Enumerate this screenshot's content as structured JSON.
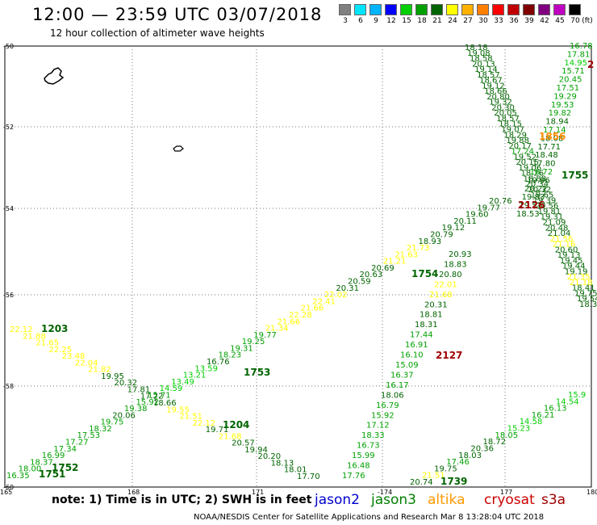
{
  "header": {
    "title": "12:00 — 23:59 UTC 03/07/2018",
    "subtitle": "12 hour collection of altimeter wave heights"
  },
  "legend": {
    "unit": "(ft)",
    "entries": [
      {
        "label": "3",
        "color": "#808080"
      },
      {
        "label": "6",
        "color": "#00e5ff"
      },
      {
        "label": "9",
        "color": "#00b4ff"
      },
      {
        "label": "12",
        "color": "#0000ff"
      },
      {
        "label": "15",
        "color": "#00d000"
      },
      {
        "label": "18",
        "color": "#00a000"
      },
      {
        "label": "21",
        "color": "#006400"
      },
      {
        "label": "24",
        "color": "#ffff00"
      },
      {
        "label": "27",
        "color": "#ffb000"
      },
      {
        "label": "30",
        "color": "#ff7f00"
      },
      {
        "label": "33",
        "color": "#ff0000"
      },
      {
        "label": "36",
        "color": "#c00000"
      },
      {
        "label": "39",
        "color": "#800000"
      },
      {
        "label": "42",
        "color": "#800080"
      },
      {
        "label": "45",
        "color": "#c000c0"
      },
      {
        "label": "70",
        "color": "#000000"
      }
    ]
  },
  "axes": {
    "lat_labels": [
      "-50",
      "-52",
      "-54",
      "-56",
      "-58",
      "-60"
    ],
    "lon_labels": [
      "165",
      "168",
      "171",
      "-174",
      "177",
      "180"
    ]
  },
  "note": "note: 1) Time is in UTC; 2) SWH is in feet",
  "satellites": [
    {
      "name": "jason2",
      "color": "#0000d0"
    },
    {
      "name": "jason3",
      "color": "#008000"
    },
    {
      "name": "altika",
      "color": "#ff9900"
    },
    {
      "name": "cryosat",
      "color": "#cc0000"
    },
    {
      "name": "s3a",
      "color": "#a00000"
    }
  ],
  "footer": "NOAA/NESDIS Center for Satellite Applications and Research   Mar  8 13:28:04 UTC 2018",
  "track_times": [
    {
      "text": "1203",
      "color": "#006400"
    },
    {
      "text": "1204",
      "color": "#006400"
    },
    {
      "text": "1751",
      "color": "#006400"
    },
    {
      "text": "1752",
      "color": "#006400"
    },
    {
      "text": "1753",
      "color": "#006400"
    },
    {
      "text": "1754",
      "color": "#006400"
    },
    {
      "text": "1755",
      "color": "#006400"
    },
    {
      "text": "1739",
      "color": "#006400"
    },
    {
      "text": "2127",
      "color": "#a00000"
    },
    {
      "text": "2126",
      "color": "#a00000"
    },
    {
      "text": "1856",
      "color": "#ff8c00"
    },
    {
      "text": "2",
      "color": "#a00000"
    }
  ],
  "track_a": {
    "note": "SW-NE jason3 track from lower-left to upper-right",
    "labels": [
      "16.35",
      "18.00",
      "18.37",
      "16.99",
      "17.34",
      "17.27",
      "17.53",
      "18.32",
      "19.75",
      "20.06",
      "19.38",
      "15.92",
      "15.71",
      "14.59",
      "13.49",
      "13.21",
      "13.59",
      "16.76",
      "18.23",
      "19.31",
      "19.25",
      "19.77",
      "21.34",
      "21.66",
      "22.28",
      "21.66",
      "22.41",
      "22.02",
      "20.31",
      "20.59",
      "20.63",
      "20.69",
      "21.21",
      "21.63",
      "21.73",
      "18.93",
      "20.79",
      "19.12",
      "20.11",
      "19.60",
      "19.77",
      "20.76"
    ],
    "colors": [
      "#00a000",
      "#00a000",
      "#00a000",
      "#00a000",
      "#00a000",
      "#00a000",
      "#00a000",
      "#00a000",
      "#00a000",
      "#006400",
      "#00a000",
      "#00a000",
      "#00a000",
      "#00d000",
      "#00d000",
      "#00d000",
      "#00d000",
      "#006400",
      "#00a000",
      "#00a000",
      "#00a000",
      "#00a000",
      "#ffff00",
      "#ffff00",
      "#ffff00",
      "#ffff00",
      "#ffff00",
      "#ffff00",
      "#006400",
      "#006400",
      "#006400",
      "#006400",
      "#ffff00",
      "#ffff00",
      "#ffff00",
      "#006400",
      "#006400",
      "#006400",
      "#006400",
      "#006400",
      "#006400",
      "#006400"
    ]
  },
  "track_b": {
    "note": "NW-SE track from left edge to bottom middle",
    "labels": [
      "22.12",
      "21.88",
      "21.65",
      "22.25",
      "23.48",
      "22.04",
      "21.82",
      "19.95",
      "20.32",
      "17.81",
      "17.22",
      "18.66",
      "19.55",
      "21.51",
      "22.12",
      "19.71",
      "21.68",
      "20.57",
      "19.94",
      "20.20",
      "18.13",
      "18.01",
      "17.70"
    ],
    "colors": [
      "#ffff00",
      "#ffff00",
      "#ffff00",
      "#ffff00",
      "#ffff00",
      "#ffff00",
      "#ffff00",
      "#006400",
      "#006400",
      "#006400",
      "#006400",
      "#006400",
      "#ffff00",
      "#ffff00",
      "#ffff00",
      "#006400",
      "#ffff00",
      "#006400",
      "#006400",
      "#006400",
      "#006400",
      "#006400",
      "#006400"
    ]
  },
  "track_c": {
    "note": "near-vertical track descending from 54S to bottom",
    "labels": [
      "20.93",
      "18.83",
      "20.80",
      "22.01",
      "21.68",
      "20.31",
      "18.81",
      "18.31",
      "17.44",
      "16.91",
      "16.10",
      "15.09",
      "16.37",
      "16.17",
      "18.06",
      "16.79",
      "15.92",
      "17.12",
      "18.33",
      "16.73",
      "15.99",
      "16.48",
      "17.76"
    ],
    "colors": [
      "#006400",
      "#006400",
      "#006400",
      "#ffff00",
      "#ffff00",
      "#006400",
      "#006400",
      "#006400",
      "#00a000",
      "#00a000",
      "#00a000",
      "#00a000",
      "#00a000",
      "#00a000",
      "#006400",
      "#00a000",
      "#00a000",
      "#00a000",
      "#00a000",
      "#00a000",
      "#00a000",
      "#00a000",
      "#00a000"
    ]
  },
  "track_d": {
    "note": "SW-NE track bottom right",
    "labels": [
      "20.74",
      "21.51",
      "19.75",
      "17.46",
      "18.03",
      "20.36",
      "18.72",
      "18.05",
      "15.23",
      "14.58",
      "16.21",
      "16.13",
      "14.54",
      "15.9"
    ],
    "colors": [
      "#006400",
      "#ffff00",
      "#006400",
      "#00a000",
      "#006400",
      "#006400",
      "#006400",
      "#00a000",
      "#00d000",
      "#00d000",
      "#00a000",
      "#00a000",
      "#00d000",
      "#00d000"
    ]
  },
  "track_e": {
    "note": "NNW-SSE track crossing top right",
    "labels": [
      "18.18",
      "19.08",
      "18.58",
      "20.13",
      "19.14",
      "18.57",
      "18.67",
      "19.12",
      "18.66",
      "20.80",
      "19.32",
      "20.30",
      "20.05",
      "18.57",
      "18.15",
      "19.07",
      "18.29",
      "19.88",
      "20.17",
      "17.24",
      "19.52",
      "20.15",
      "19.06",
      "18.26",
      "18.88",
      "20.34",
      "20.32",
      "19.65",
      "19.39",
      "20.56",
      "19.81",
      "19.31",
      "21.09",
      "20.48",
      "21.04",
      "21.56",
      "21.16",
      "20.60",
      "19.13",
      "19.45",
      "19.44",
      "19.19",
      "21.35",
      "21.18",
      "18.41",
      "19.75",
      "19.54",
      "18.32"
    ],
    "colors": [
      "#006400",
      "#006400",
      "#006400",
      "#006400",
      "#006400",
      "#006400",
      "#006400",
      "#006400",
      "#006400",
      "#006400",
      "#006400",
      "#006400",
      "#006400",
      "#006400",
      "#006400",
      "#006400",
      "#006400",
      "#006400",
      "#006400",
      "#00a000",
      "#006400",
      "#006400",
      "#006400",
      "#006400",
      "#006400",
      "#006400",
      "#006400",
      "#006400",
      "#006400",
      "#006400",
      "#006400",
      "#006400",
      "#006400",
      "#006400",
      "#006400",
      "#ffff00",
      "#ffff00",
      "#006400",
      "#006400",
      "#006400",
      "#006400",
      "#006400",
      "#ffff00",
      "#ffff00",
      "#006400",
      "#006400",
      "#006400",
      "#006400"
    ]
  },
  "track_f": {
    "note": "NNE-SSW track crossing top right",
    "labels": [
      "16.78",
      "17.81",
      "14.95",
      "15.71",
      "20.45",
      "17.51",
      "19.29",
      "19.53",
      "19.82",
      "18.94",
      "17.14",
      "18.08",
      "17.71",
      "18.48",
      "17.80",
      "16.72",
      "19.96",
      "20.22",
      "19.83",
      "19.57",
      "18.53"
    ],
    "colors": [
      "#00a000",
      "#00a000",
      "#00d000",
      "#00a000",
      "#00a000",
      "#00a000",
      "#00a000",
      "#00a000",
      "#00a000",
      "#006400",
      "#00a000",
      "#006400",
      "#006400",
      "#006400",
      "#006400",
      "#00a000",
      "#006400",
      "#006400",
      "#006400",
      "#006400",
      "#006400"
    ]
  }
}
